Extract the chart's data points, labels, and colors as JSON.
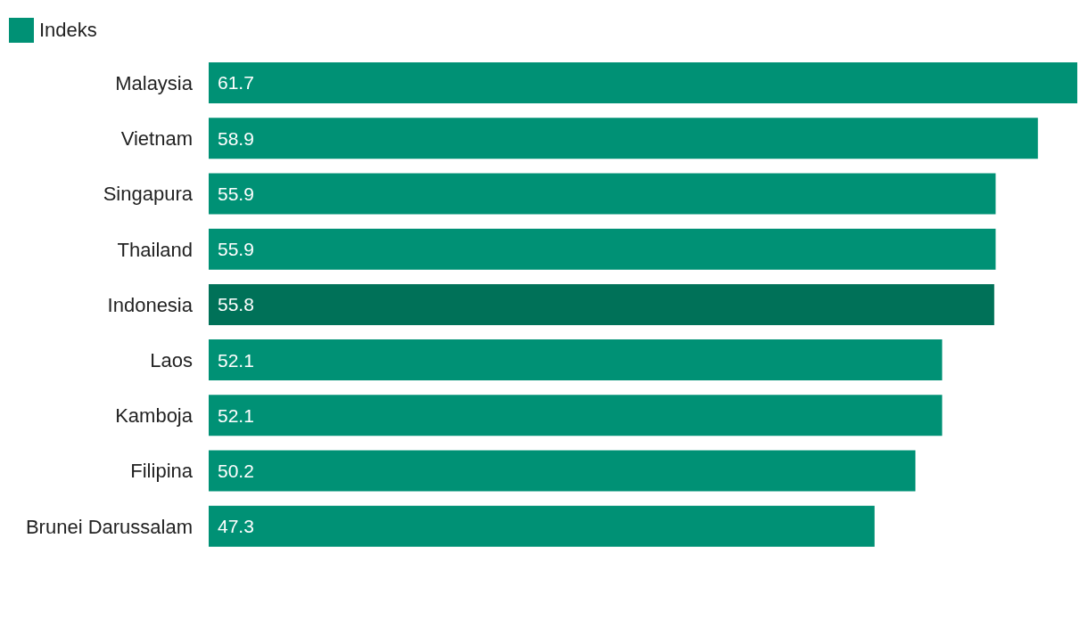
{
  "chart_data": {
    "type": "bar",
    "orientation": "horizontal",
    "categories": [
      "Malaysia",
      "Vietnam",
      "Singapura",
      "Thailand",
      "Indonesia",
      "Laos",
      "Kamboja",
      "Filipina",
      "Brunei Darussalam"
    ],
    "series": [
      {
        "name": "Indeks",
        "color": "#009175",
        "colors": [
          "#009175",
          "#009175",
          "#009175",
          "#009175",
          "#007158",
          "#009175",
          "#009175",
          "#009175",
          "#009175"
        ],
        "values": [
          61.7,
          58.9,
          55.9,
          55.9,
          55.8,
          52.1,
          52.1,
          50.2,
          47.3
        ]
      }
    ],
    "data_labels": true,
    "legend": "top left"
  }
}
